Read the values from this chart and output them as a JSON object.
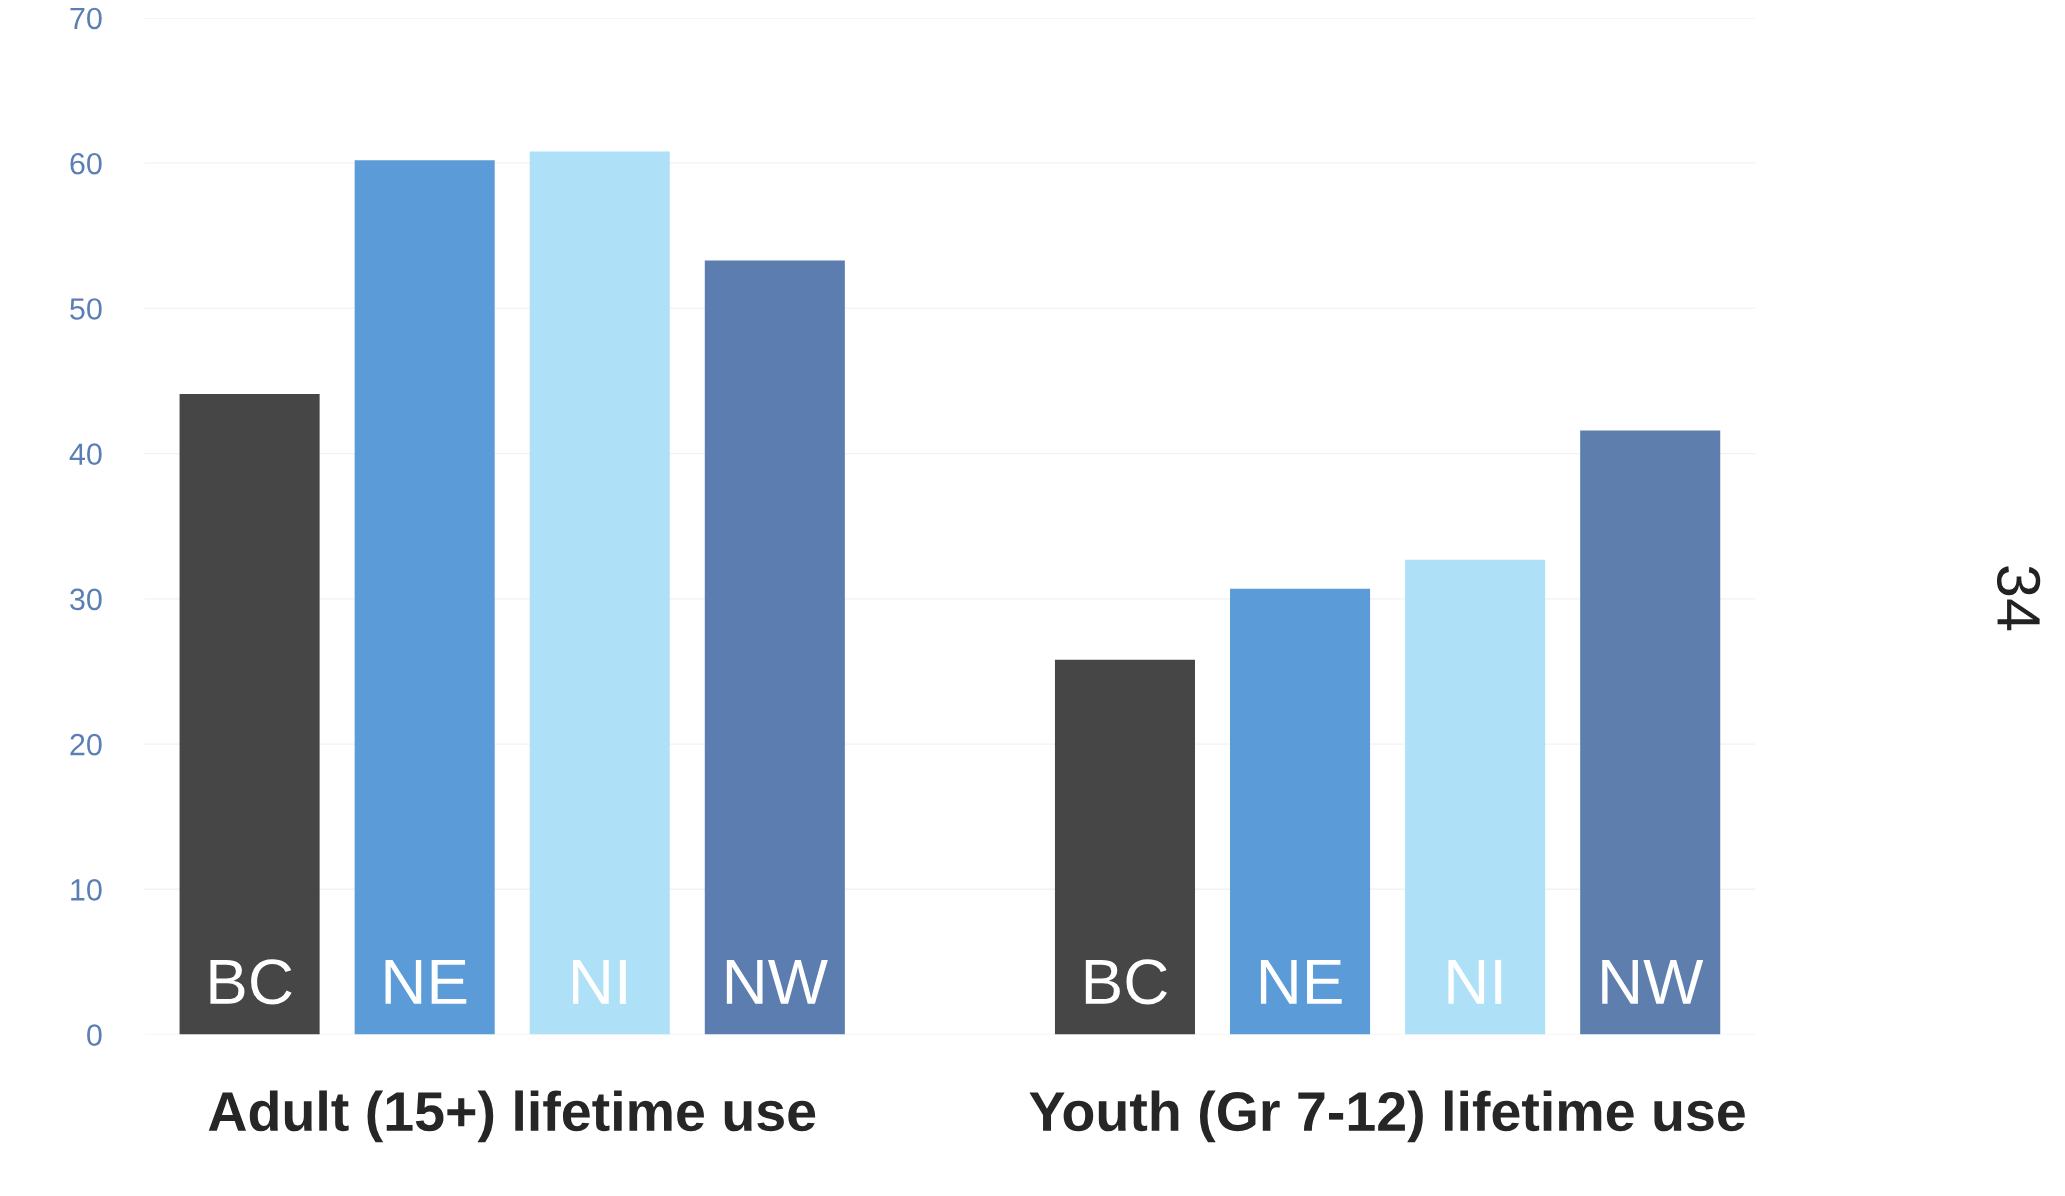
{
  "chart_data": {
    "type": "bar",
    "categories": [
      "BC",
      "NE",
      "NI",
      "NW",
      null,
      "BC",
      "NE",
      "NI",
      "NW"
    ],
    "values": [
      44.1,
      60.2,
      60.8,
      53.3,
      null,
      25.8,
      30.7,
      32.7,
      41.6
    ],
    "colors": [
      "#464646",
      "#5b9bd8",
      "#aee0f8",
      "#5b7db0",
      "#ffffff",
      "#464646",
      "#5b9bd8",
      "#aee0f8",
      "#5e7fae"
    ],
    "ylim": [
      0,
      70
    ],
    "yticks": [
      0,
      10,
      20,
      30,
      40,
      50,
      60,
      70
    ],
    "grid": "y",
    "annotations": [
      "Adult (15+) lifetime use",
      "Youth (Gr 7-12) lifetime use",
      "34"
    ]
  }
}
